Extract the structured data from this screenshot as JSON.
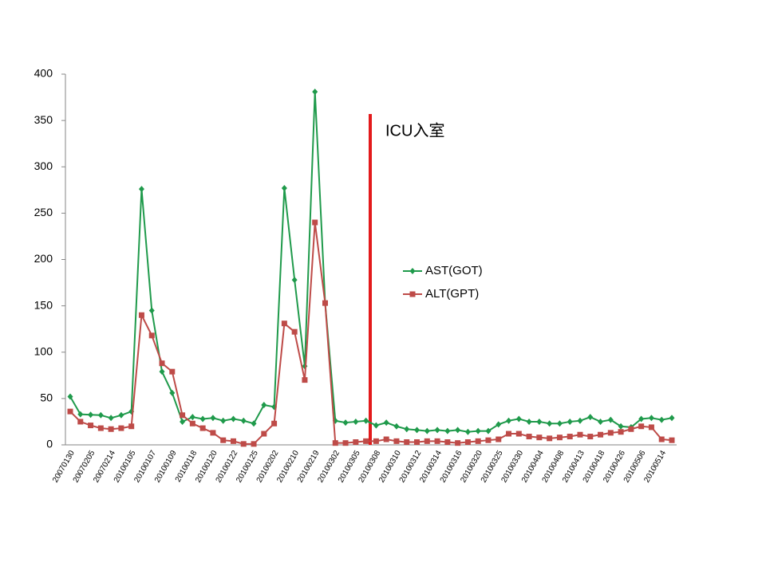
{
  "chart_data": {
    "type": "line",
    "categories": [
      "20070130",
      null,
      "20070205",
      null,
      "20070214",
      null,
      "20100105",
      null,
      "20100107",
      null,
      "20100109",
      null,
      "20100118",
      null,
      "20100120",
      null,
      "20100122",
      null,
      "20100125",
      null,
      "20100202",
      null,
      "20100210",
      null,
      "20100219",
      null,
      "20100302",
      null,
      "20100305",
      null,
      "20100308",
      null,
      "20100310",
      null,
      "20100312",
      null,
      "20100314",
      null,
      "20100316",
      null,
      "20100320",
      null,
      "20100325",
      null,
      "20100330",
      null,
      "20100404",
      null,
      "20100408",
      null,
      "20100413",
      null,
      "20100418",
      null,
      "20100426",
      null,
      "20100506",
      null,
      "20100514",
      null
    ],
    "series": [
      {
        "name": "AST(GOT)",
        "color": "#1f9a4b",
        "marker": "diamond",
        "values": [
          52,
          33,
          32.5,
          32,
          29,
          32,
          36,
          276,
          145,
          79,
          56,
          25,
          30,
          28,
          29,
          26,
          28,
          26,
          23,
          43,
          41,
          277,
          178,
          85,
          381,
          153,
          26,
          24,
          25,
          26,
          21,
          24,
          20,
          17,
          16,
          15,
          16,
          15,
          16,
          14,
          15,
          15,
          22,
          26,
          28,
          25,
          25,
          23,
          23,
          25,
          26,
          30,
          25,
          27,
          20,
          19,
          28,
          29,
          27,
          29
        ]
      },
      {
        "name": "ALT(GPT)",
        "color": "#be4b48",
        "marker": "square",
        "values": [
          36,
          25,
          21,
          18,
          17,
          18,
          20,
          140,
          118,
          88,
          79,
          32,
          23,
          18,
          13,
          5,
          4,
          1,
          1,
          12,
          23,
          131,
          122,
          70,
          240,
          153,
          2,
          2,
          3,
          4,
          4,
          6,
          4,
          3,
          3,
          4,
          4,
          3,
          2,
          3,
          4,
          5,
          6,
          12,
          12,
          9,
          8,
          7,
          8,
          9,
          11,
          9,
          11,
          13,
          14,
          17,
          20,
          19,
          6,
          5
        ]
      }
    ],
    "ylim": [
      0,
      400
    ],
    "yticks": [
      0,
      50,
      100,
      150,
      200,
      250,
      300,
      350,
      400
    ],
    "grid": false,
    "annotation": "ICU入室"
  }
}
